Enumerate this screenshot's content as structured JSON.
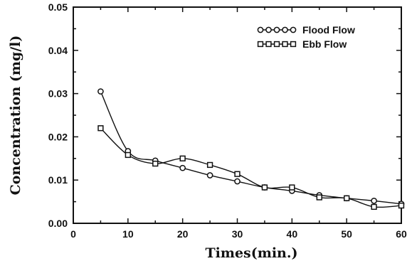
{
  "chart_data": {
    "type": "line",
    "xlabel": "Times(min.)",
    "ylabel": "Concentration (mg/l)",
    "xlim": [
      0,
      60
    ],
    "ylim": [
      0,
      0.05
    ],
    "xticks": [
      "0",
      "10",
      "20",
      "30",
      "40",
      "50",
      "60"
    ],
    "yticks": [
      "0.00",
      "0.01",
      "0.02",
      "0.03",
      "0.04",
      "0.05"
    ],
    "legend_position": "top-right",
    "grid": false,
    "series": [
      {
        "name": "Flood Flow",
        "marker": "circle",
        "x": [
          5,
          10,
          15,
          20,
          25,
          30,
          35,
          40,
          45,
          50,
          55,
          60
        ],
        "values": [
          0.0305,
          0.0167,
          0.0145,
          0.0128,
          0.0111,
          0.0097,
          0.0083,
          0.0075,
          0.0065,
          0.0058,
          0.0052,
          0.0045
        ]
      },
      {
        "name": "Ebb Flow",
        "marker": "square",
        "x": [
          5,
          10,
          15,
          20,
          25,
          30,
          35,
          40,
          45,
          50,
          55,
          60
        ],
        "values": [
          0.022,
          0.0158,
          0.0138,
          0.015,
          0.0135,
          0.0114,
          0.0083,
          0.0083,
          0.006,
          0.0058,
          0.0038,
          0.0041
        ]
      }
    ]
  }
}
